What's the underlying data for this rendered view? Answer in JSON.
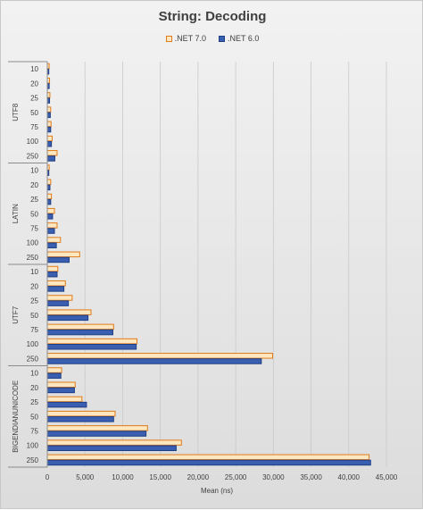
{
  "chart_data": {
    "type": "bar",
    "orientation": "horizontal",
    "title": "String: Decoding",
    "xlabel": "Mean (ns)",
    "ylabel": "",
    "xlim": [
      0,
      45000
    ],
    "x_ticks": [
      "0",
      "5,000",
      "10,000",
      "15,000",
      "20,000",
      "25,000",
      "30,000",
      "35,000",
      "40,000",
      "45,000"
    ],
    "grid": true,
    "legend_position": "top",
    "colors": {
      "net7_fill": "#fde7c0",
      "net7_border": "#e07b1a",
      "net6_fill": "#3a5fb0",
      "net6_border": "#1f3f85"
    },
    "groups": [
      {
        "name": "UTF8",
        "categories": [
          "10",
          "20",
          "25",
          "50",
          "75",
          "100",
          "250"
        ]
      },
      {
        "name": "LATIN",
        "categories": [
          "10",
          "20",
          "25",
          "50",
          "75",
          "100",
          "250"
        ]
      },
      {
        "name": "UTF7",
        "categories": [
          "10",
          "20",
          "25",
          "50",
          "75",
          "100",
          "250"
        ]
      },
      {
        "name": "BIGENDIANUNICODE",
        "categories": [
          "10",
          "20",
          "25",
          "50",
          "75",
          "100",
          "250"
        ]
      }
    ],
    "series": [
      {
        "name": ".NET 7.0",
        "values": [
          250,
          300,
          350,
          450,
          500,
          650,
          1300,
          250,
          450,
          550,
          950,
          1300,
          1750,
          4300,
          1400,
          2400,
          3300,
          5800,
          8800,
          11900,
          29900,
          1900,
          3700,
          4600,
          9000,
          13300,
          17800,
          42700
        ]
      },
      {
        "name": ".NET 6.0",
        "values": [
          200,
          250,
          300,
          400,
          450,
          550,
          1000,
          200,
          350,
          450,
          700,
          950,
          1200,
          2900,
          1300,
          2200,
          2800,
          5400,
          8700,
          11800,
          28400,
          1800,
          3600,
          5200,
          8800,
          13100,
          17100,
          42900
        ]
      }
    ]
  }
}
